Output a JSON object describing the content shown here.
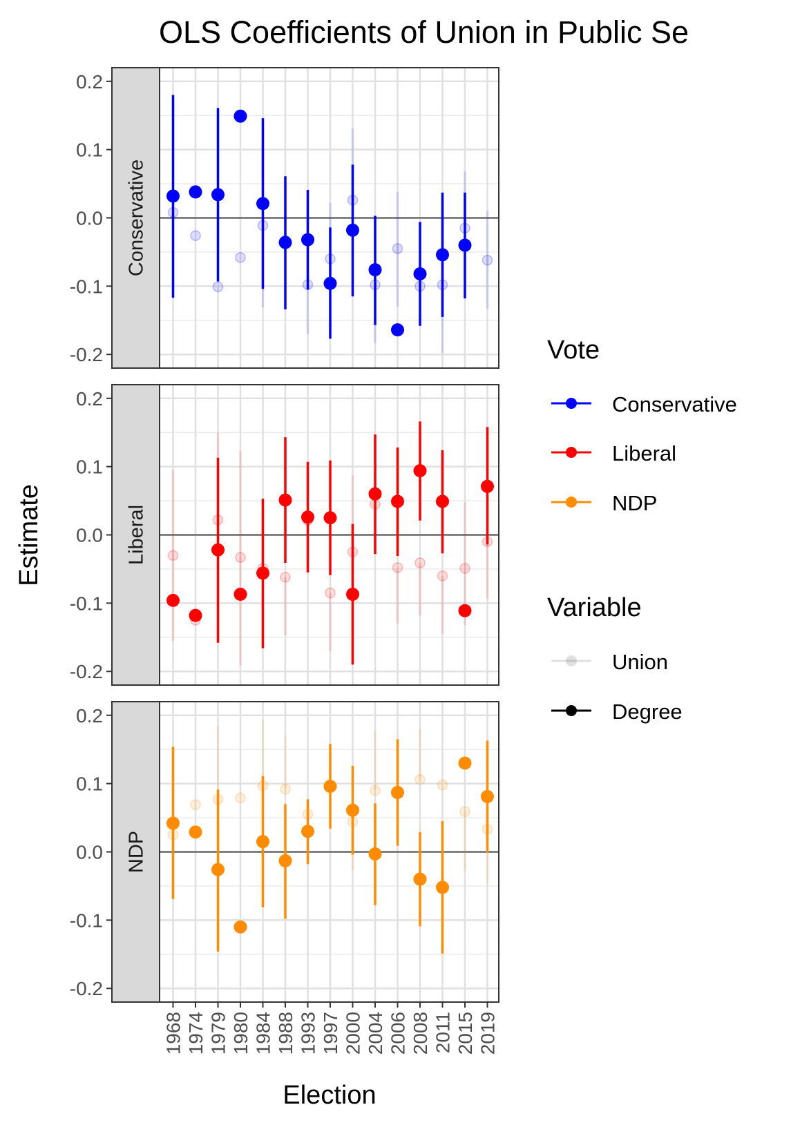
{
  "chart_data": {
    "type": "scatter",
    "title": "OLS Coefficients of Union in Public Se",
    "xlabel": "Election",
    "ylabel": "Estimate",
    "ylim": [
      -0.22,
      0.22
    ],
    "yticks": [
      "0.2",
      "0.1",
      "0.0",
      "-0.1",
      "-0.2"
    ],
    "ytick_values": [
      0.2,
      0.1,
      0.0,
      -0.1,
      -0.2
    ],
    "categories": [
      "1968",
      "1974",
      "1979",
      "1980",
      "1984",
      "1988",
      "1993",
      "1997",
      "2000",
      "2004",
      "2006",
      "2008",
      "2011",
      "2015",
      "2019"
    ],
    "grid": true,
    "legend_position": "right",
    "legends": [
      {
        "title": "Vote",
        "entries": [
          {
            "label": "Conservative",
            "color": "#0000FF"
          },
          {
            "label": "Liberal",
            "color": "#FF0000"
          },
          {
            "label": "NDP",
            "color": "#FF8C00"
          }
        ]
      },
      {
        "title": "Variable",
        "entries": [
          {
            "label": "Union",
            "color": "#000000",
            "opacity": 0.12
          },
          {
            "label": "Degree",
            "color": "#000000",
            "opacity": 1.0
          }
        ]
      }
    ],
    "panels": [
      {
        "label": "Conservative",
        "color": "#0000FF",
        "series": [
          {
            "name": "Degree",
            "estimate": [
              0.032,
              0.038,
              0.034,
              0.149,
              0.021,
              -0.036,
              -0.032,
              -0.096,
              -0.018,
              -0.076,
              -0.164,
              -0.082,
              -0.054,
              -0.04,
              null
            ],
            "lower": [
              -0.117,
              null,
              -0.093,
              null,
              -0.104,
              -0.134,
              -0.105,
              -0.177,
              -0.115,
              -0.157,
              null,
              -0.158,
              -0.145,
              -0.118,
              null
            ],
            "upper": [
              0.18,
              null,
              0.161,
              null,
              0.146,
              0.061,
              0.041,
              -0.014,
              0.078,
              0.003,
              null,
              -0.006,
              0.037,
              0.037,
              null
            ]
          },
          {
            "name": "Union",
            "estimate": [
              0.008,
              -0.026,
              -0.101,
              -0.058,
              -0.011,
              -0.033,
              -0.098,
              -0.06,
              0.026,
              -0.098,
              -0.045,
              -0.1,
              -0.098,
              -0.015,
              -0.062
            ],
            "lower": [
              null,
              null,
              null,
              null,
              -0.131,
              null,
              -0.17,
              null,
              null,
              -0.183,
              -0.13,
              null,
              -0.198,
              null,
              -0.133
            ],
            "upper": [
              null,
              null,
              null,
              null,
              0.11,
              null,
              0.025,
              0.022,
              0.131,
              null,
              0.038,
              null,
              0.004,
              0.068,
              0.01
            ]
          }
        ]
      },
      {
        "label": "Liberal",
        "color": "#FF0000",
        "series": [
          {
            "name": "Degree",
            "estimate": [
              -0.096,
              -0.118,
              -0.022,
              -0.087,
              -0.056,
              0.051,
              0.026,
              0.025,
              -0.087,
              0.06,
              0.049,
              0.094,
              0.049,
              -0.111,
              0.071
            ],
            "lower": [
              null,
              null,
              -0.158,
              null,
              -0.166,
              -0.041,
              -0.055,
              -0.059,
              -0.19,
              -0.028,
              -0.031,
              0.021,
              -0.027,
              null,
              -0.014
            ],
            "upper": [
              null,
              null,
              0.113,
              null,
              0.053,
              0.143,
              0.107,
              0.109,
              0.016,
              0.147,
              0.128,
              0.166,
              0.124,
              null,
              0.158
            ]
          },
          {
            "name": "Union",
            "estimate": [
              -0.03,
              -0.125,
              0.022,
              -0.033,
              -0.049,
              -0.062,
              0.021,
              -0.085,
              -0.025,
              0.045,
              -0.048,
              -0.041,
              -0.06,
              -0.049,
              -0.01
            ],
            "lower": [
              -0.155,
              null,
              null,
              -0.191,
              null,
              -0.147,
              null,
              -0.17,
              null,
              null,
              -0.13,
              -0.118,
              -0.145,
              -0.132,
              -0.093
            ],
            "upper": [
              0.095,
              null,
              0.15,
              0.123,
              null,
              null,
              null,
              null,
              0.087,
              null,
              null,
              null,
              null,
              0.048,
              null
            ]
          }
        ]
      },
      {
        "label": "NDP",
        "color": "#FF8C00",
        "series": [
          {
            "name": "Degree",
            "estimate": [
              0.042,
              0.029,
              -0.026,
              -0.11,
              0.015,
              -0.013,
              0.03,
              0.096,
              0.061,
              -0.003,
              0.087,
              -0.04,
              -0.052,
              0.13,
              0.081
            ],
            "lower": [
              -0.069,
              null,
              -0.146,
              null,
              -0.081,
              -0.098,
              -0.018,
              0.034,
              -0.004,
              -0.078,
              0.009,
              -0.109,
              -0.149,
              null,
              -0.001
            ],
            "upper": [
              0.154,
              null,
              0.091,
              null,
              0.111,
              0.07,
              0.077,
              0.158,
              0.126,
              0.071,
              0.165,
              0.029,
              0.045,
              null,
              0.163
            ]
          },
          {
            "name": "Union",
            "estimate": [
              0.025,
              0.069,
              0.077,
              0.079,
              0.097,
              0.092,
              0.055,
              0.096,
              0.044,
              0.09,
              0.087,
              0.106,
              0.098,
              0.059,
              0.033
            ],
            "lower": [
              null,
              null,
              null,
              null,
              null,
              null,
              null,
              null,
              -0.027,
              null,
              null,
              null,
              null,
              -0.028,
              -0.046
            ],
            "upper": [
              null,
              null,
              0.185,
              null,
              0.193,
              0.171,
              null,
              null,
              null,
              0.177,
              null,
              0.18,
              null,
              null,
              null
            ]
          }
        ]
      }
    ]
  }
}
